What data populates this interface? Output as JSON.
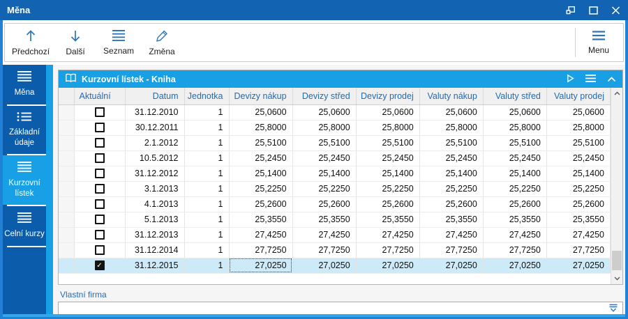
{
  "window": {
    "title": "Měna"
  },
  "titlebar": {
    "controls": [
      "restore",
      "maximize",
      "close"
    ]
  },
  "toolbar": {
    "buttons": [
      {
        "label": "Předchozí",
        "icon": "arrow-up-icon"
      },
      {
        "label": "Další",
        "icon": "arrow-down-icon"
      },
      {
        "label": "Seznam",
        "icon": "list-icon"
      },
      {
        "label": "Změna",
        "icon": "pencil-icon"
      }
    ],
    "menu_label": "Menu",
    "menu_icon": "menu-lines-icon"
  },
  "sidebar": {
    "items": [
      {
        "label": "Měna",
        "icon": "menu-lines-icon",
        "selected": false
      },
      {
        "label": "Základní údaje",
        "icon": "detail-list-icon",
        "selected": false
      },
      {
        "label": "Kurzovní lístek",
        "icon": "menu-lines-icon",
        "selected": true
      },
      {
        "label": "Celní kurzy",
        "icon": "menu-lines-icon",
        "selected": false
      }
    ]
  },
  "panel": {
    "title": "Kurzovní lístek - Kniha",
    "header_icons": [
      "book-icon",
      "play-icon",
      "menu-icon",
      "collapse-icon"
    ]
  },
  "table": {
    "columns": [
      "Aktuální",
      "Datum",
      "Jednotka",
      "Devizy nákup",
      "Devizy střed",
      "Devizy prodej",
      "Valuty nákup",
      "Valuty střed",
      "Valuty prodej"
    ],
    "rows": [
      {
        "checked": false,
        "date": "31.12.2010",
        "unit": "1",
        "rates": [
          "25,0600",
          "25,0600",
          "25,0600",
          "25,0600",
          "25,0600",
          "25,0600"
        ],
        "selected": false
      },
      {
        "checked": false,
        "date": "30.12.2011",
        "unit": "1",
        "rates": [
          "25,8000",
          "25,8000",
          "25,8000",
          "25,8000",
          "25,8000",
          "25,8000"
        ],
        "selected": false
      },
      {
        "checked": false,
        "date": "2.1.2012",
        "unit": "1",
        "rates": [
          "25,5100",
          "25,5100",
          "25,5100",
          "25,5100",
          "25,5100",
          "25,5100"
        ],
        "selected": false
      },
      {
        "checked": false,
        "date": "10.5.2012",
        "unit": "1",
        "rates": [
          "25,2450",
          "25,2450",
          "25,2450",
          "25,2450",
          "25,2450",
          "25,2450"
        ],
        "selected": false
      },
      {
        "checked": false,
        "date": "31.12.2012",
        "unit": "1",
        "rates": [
          "25,1400",
          "25,1400",
          "25,1400",
          "25,1400",
          "25,1400",
          "25,1400"
        ],
        "selected": false
      },
      {
        "checked": false,
        "date": "3.1.2013",
        "unit": "1",
        "rates": [
          "25,2250",
          "25,2250",
          "25,2250",
          "25,2250",
          "25,2250",
          "25,2250"
        ],
        "selected": false
      },
      {
        "checked": false,
        "date": "4.1.2013",
        "unit": "1",
        "rates": [
          "25,2600",
          "25,2600",
          "25,2600",
          "25,2600",
          "25,2600",
          "25,2600"
        ],
        "selected": false
      },
      {
        "checked": false,
        "date": "5.1.2013",
        "unit": "1",
        "rates": [
          "25,3550",
          "25,3550",
          "25,3550",
          "25,3550",
          "25,3550",
          "25,3550"
        ],
        "selected": false
      },
      {
        "checked": false,
        "date": "31.12.2013",
        "unit": "1",
        "rates": [
          "27,4250",
          "27,4250",
          "27,4250",
          "27,4250",
          "27,4250",
          "27,4250"
        ],
        "selected": false
      },
      {
        "checked": false,
        "date": "31.12.2014",
        "unit": "1",
        "rates": [
          "27,7250",
          "27,7250",
          "27,7250",
          "27,7250",
          "27,7250",
          "27,7250"
        ],
        "selected": false
      },
      {
        "checked": true,
        "date": "31.12.2015",
        "unit": "1",
        "rates": [
          "27,0250",
          "27,0250",
          "27,0250",
          "27,0250",
          "27,0250",
          "27,0250"
        ],
        "selected": true
      }
    ],
    "focused_rate_index": 0
  },
  "footer": {
    "label": "Vlastní firma",
    "value": ""
  },
  "colors": {
    "titlebar": "#1264b2",
    "window_border": "#2181d6",
    "sidebar": "#0b5cab",
    "accent": "#18a0e6",
    "panel_header": "#189fe4",
    "header_text": "#1e6bb8",
    "selected_row": "#cdeaf9",
    "toolbar_icon": "#2e75b6"
  }
}
